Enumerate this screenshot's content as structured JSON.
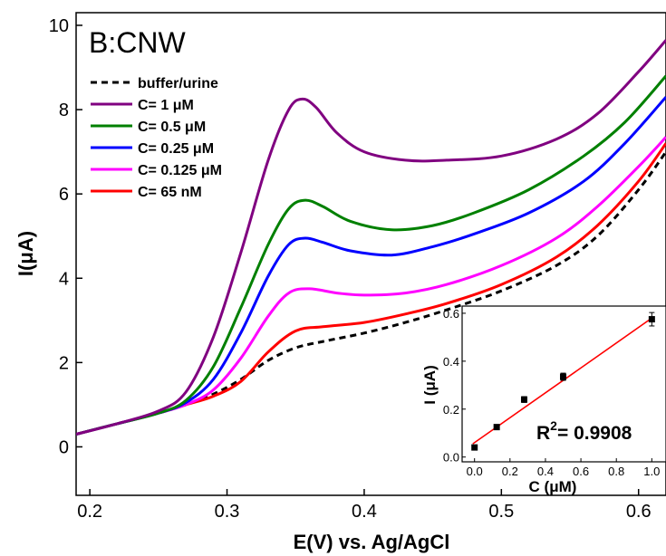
{
  "chart_data": [
    {
      "type": "line",
      "panel_label": "B:CNW",
      "xlabel": "E(V) vs. Ag/AgCl",
      "ylabel": "I(μA)",
      "xlim": [
        0.19,
        0.62
      ],
      "ylim": [
        -1.15,
        10.3
      ],
      "xticks": [
        0.2,
        0.3,
        0.4,
        0.5,
        0.6
      ],
      "xtick_labels": [
        "0.2",
        "0.3",
        "0.4",
        "0.5",
        "0.6"
      ],
      "yticks": [
        0,
        2,
        4,
        6,
        8,
        10
      ],
      "ytick_labels": [
        "0",
        "2",
        "4",
        "6",
        "8",
        "10"
      ],
      "legend_position": "top-left",
      "series": [
        {
          "name": "buffer/urine",
          "color": "#000000",
          "dash": true,
          "x": [
            0.19,
            0.22,
            0.25,
            0.27,
            0.29,
            0.31,
            0.33,
            0.35,
            0.37,
            0.4,
            0.43,
            0.46,
            0.5,
            0.54,
            0.57,
            0.6,
            0.62
          ],
          "y": [
            0.3,
            0.55,
            0.8,
            1.0,
            1.25,
            1.6,
            2.05,
            2.35,
            2.5,
            2.7,
            2.95,
            3.25,
            3.7,
            4.3,
            5.0,
            6.1,
            7.0
          ]
        },
        {
          "name": "C= 65 nM",
          "color": "#ff0000",
          "dash": false,
          "x": [
            0.19,
            0.22,
            0.25,
            0.27,
            0.29,
            0.31,
            0.33,
            0.35,
            0.37,
            0.4,
            0.43,
            0.46,
            0.5,
            0.54,
            0.57,
            0.6,
            0.62
          ],
          "y": [
            0.3,
            0.55,
            0.8,
            1.0,
            1.2,
            1.55,
            2.25,
            2.75,
            2.85,
            2.95,
            3.15,
            3.4,
            3.85,
            4.5,
            5.25,
            6.3,
            7.2
          ]
        },
        {
          "name": "C= 0.125 μM",
          "color": "#ff00ff",
          "dash": false,
          "x": [
            0.19,
            0.22,
            0.25,
            0.27,
            0.29,
            0.31,
            0.33,
            0.345,
            0.36,
            0.38,
            0.4,
            0.43,
            0.46,
            0.5,
            0.54,
            0.57,
            0.6,
            0.62
          ],
          "y": [
            0.3,
            0.55,
            0.8,
            1.0,
            1.35,
            2.1,
            3.1,
            3.65,
            3.75,
            3.65,
            3.6,
            3.65,
            3.85,
            4.3,
            4.95,
            5.7,
            6.65,
            7.35
          ]
        },
        {
          "name": "C= 0.25 μM",
          "color": "#0000ff",
          "dash": false,
          "x": [
            0.19,
            0.22,
            0.25,
            0.27,
            0.29,
            0.31,
            0.33,
            0.345,
            0.357,
            0.37,
            0.39,
            0.42,
            0.45,
            0.48,
            0.52,
            0.56,
            0.59,
            0.62
          ],
          "y": [
            0.3,
            0.55,
            0.8,
            1.05,
            1.6,
            2.7,
            4.05,
            4.8,
            4.95,
            4.85,
            4.65,
            4.55,
            4.75,
            5.05,
            5.55,
            6.3,
            7.2,
            8.3
          ]
        },
        {
          "name": "C= 0.5 μM",
          "color": "#008000",
          "dash": false,
          "x": [
            0.19,
            0.22,
            0.25,
            0.27,
            0.29,
            0.31,
            0.33,
            0.345,
            0.357,
            0.37,
            0.39,
            0.42,
            0.45,
            0.48,
            0.52,
            0.56,
            0.59,
            0.62
          ],
          "y": [
            0.3,
            0.55,
            0.8,
            1.1,
            1.9,
            3.3,
            4.8,
            5.65,
            5.85,
            5.7,
            5.35,
            5.15,
            5.25,
            5.55,
            6.1,
            6.9,
            7.7,
            8.8
          ]
        },
        {
          "name": "C= 1 μM",
          "color": "#800080",
          "dash": false,
          "x": [
            0.19,
            0.22,
            0.25,
            0.27,
            0.29,
            0.31,
            0.33,
            0.345,
            0.355,
            0.365,
            0.38,
            0.4,
            0.43,
            0.46,
            0.5,
            0.54,
            0.57,
            0.6,
            0.62
          ],
          "y": [
            0.3,
            0.55,
            0.85,
            1.3,
            2.6,
            4.6,
            6.8,
            8.0,
            8.25,
            8.05,
            7.45,
            7.0,
            6.8,
            6.8,
            6.9,
            7.3,
            7.9,
            8.9,
            9.65
          ]
        }
      ]
    },
    {
      "type": "scatter",
      "xlabel": "C (μM)",
      "ylabel": "I (μA)",
      "xlim": [
        -0.07,
        1.08
      ],
      "ylim": [
        -0.02,
        0.63
      ],
      "xticks": [
        0.0,
        0.2,
        0.4,
        0.6,
        0.8,
        1.0
      ],
      "xtick_labels": [
        "0.0",
        "0.2",
        "0.4",
        "0.6",
        "0.8",
        "1.0"
      ],
      "yticks": [
        0.0,
        0.2,
        0.4,
        0.6
      ],
      "ytick_labels": [
        "0.0",
        "0.2",
        "0.4",
        "0.6"
      ],
      "annotation": "R²= 0.9908",
      "annotation_parts": {
        "r": "R",
        "sup": "2",
        "rest": "= 0.9908"
      },
      "points": {
        "x": [
          0.0,
          0.125,
          0.28,
          0.5,
          1.0
        ],
        "y": [
          0.04,
          0.125,
          0.24,
          0.335,
          0.575
        ],
        "err": [
          0.006,
          0.006,
          0.012,
          0.015,
          0.028
        ]
      },
      "fit": {
        "x": [
          -0.01,
          1.01
        ],
        "y": [
          0.055,
          0.585
        ],
        "color": "#ff0000"
      }
    }
  ]
}
